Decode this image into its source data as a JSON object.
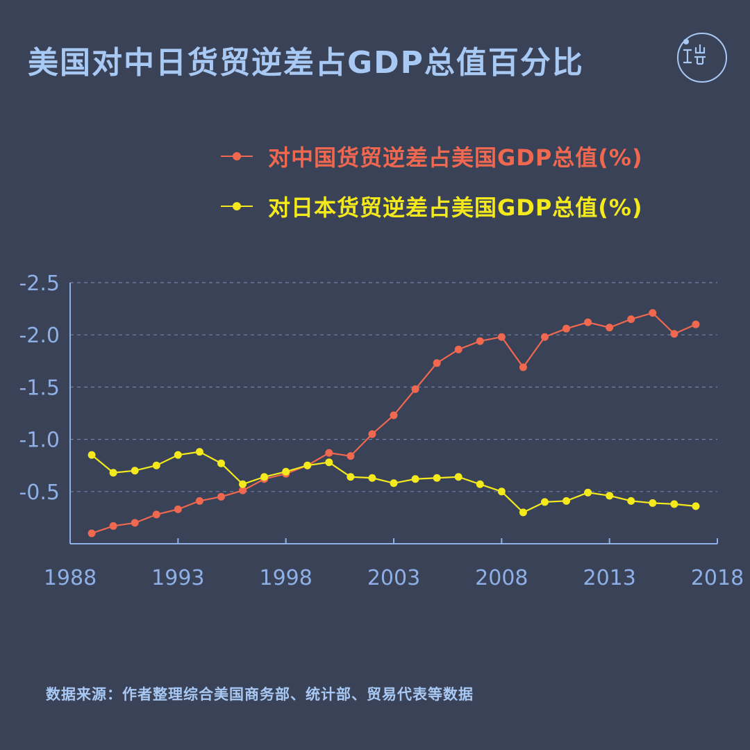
{
  "title": "美国对中日货贸逆差占GDP总值百分比",
  "source": "数据来源：作者整理综合美国商务部、统计部、贸易代表等数据",
  "colors": {
    "background": "#394257",
    "title": "#a9c9f5",
    "axis": "#8fb0e6",
    "grid": "#6f84ad",
    "china": "#f0684f",
    "japan": "#f4e91c"
  },
  "logo_icon": "duan-logo-icon",
  "chart_data": {
    "type": "line",
    "x": [
      1989,
      1990,
      1991,
      1992,
      1993,
      1994,
      1995,
      1996,
      1997,
      1998,
      1999,
      2000,
      2001,
      2002,
      2003,
      2004,
      2005,
      2006,
      2007,
      2008,
      2009,
      2010,
      2011,
      2012,
      2013,
      2014,
      2015,
      2016,
      2017
    ],
    "series": [
      {
        "name": "对中国货贸逆差占美国GDP总值(%)",
        "color": "#f0684f",
        "values": [
          -0.1,
          -0.17,
          -0.2,
          -0.28,
          -0.33,
          -0.41,
          -0.45,
          -0.51,
          -0.62,
          -0.67,
          -0.75,
          -0.87,
          -0.84,
          -1.05,
          -1.23,
          -1.48,
          -1.73,
          -1.86,
          -1.94,
          -1.98,
          -1.69,
          -1.98,
          -2.06,
          -2.12,
          -2.07,
          -2.15,
          -2.21,
          -2.01,
          -2.1
        ]
      },
      {
        "name": "对日本货贸逆差占美国GDP总值(%)",
        "color": "#f4e91c",
        "values": [
          -0.85,
          -0.68,
          -0.7,
          -0.75,
          -0.85,
          -0.88,
          -0.77,
          -0.57,
          -0.64,
          -0.69,
          -0.75,
          -0.78,
          -0.64,
          -0.63,
          -0.58,
          -0.62,
          -0.63,
          -0.64,
          -0.57,
          -0.5,
          -0.3,
          -0.4,
          -0.41,
          -0.49,
          -0.46,
          -0.41,
          -0.39,
          -0.38,
          -0.36
        ]
      }
    ],
    "yticks": [
      "-2.5",
      "-2.0",
      "-1.5",
      "-1.0",
      "-0.5"
    ],
    "ytick_values": [
      -2.5,
      -2.0,
      -1.5,
      -1.0,
      -0.5
    ],
    "xticks": [
      "1988",
      "1993",
      "1998",
      "2003",
      "2008",
      "2013",
      "2018"
    ],
    "xtick_values": [
      1988,
      1993,
      1998,
      2003,
      2008,
      2013,
      2018
    ],
    "xlim": [
      1988,
      2018
    ],
    "ylim": [
      0,
      -2.5
    ],
    "y_inverted": true,
    "grid": "horizontal dashed",
    "legend_position": "top"
  }
}
